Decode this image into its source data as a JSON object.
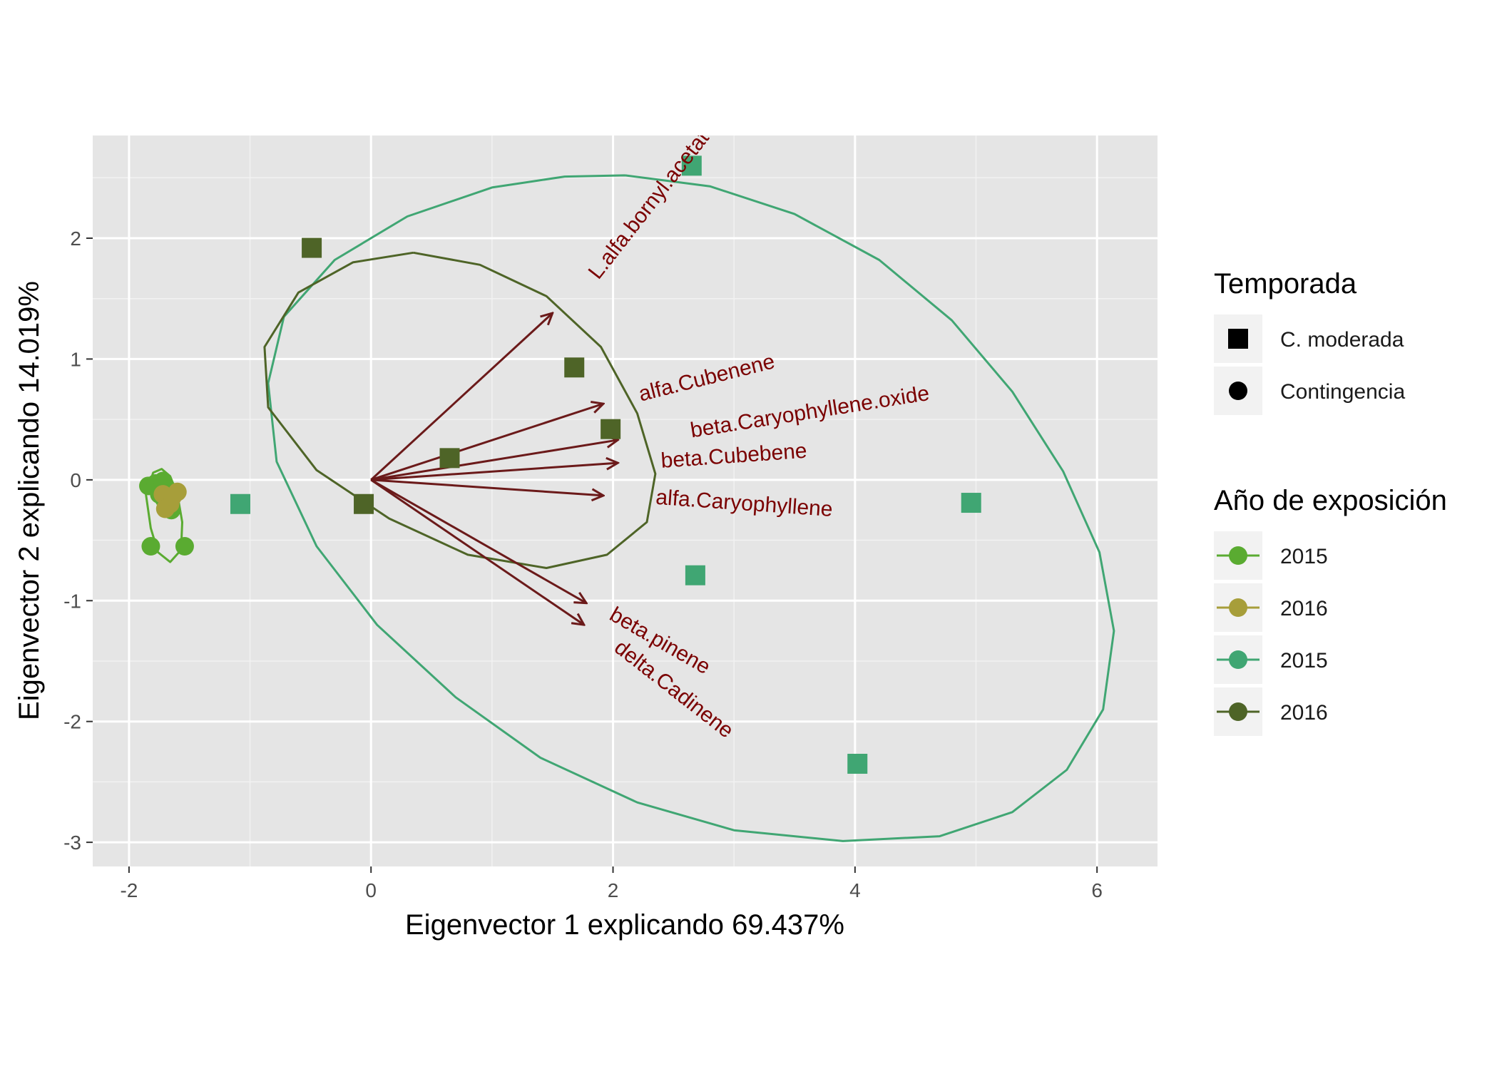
{
  "chart_data": {
    "type": "scatter",
    "subtype": "pca-biplot",
    "xlabel": "Eigenvector 1 explicando 69.437%",
    "ylabel": "Eigenvector 2 explicando 14.019%",
    "xlim": [
      -2.3,
      6.5
    ],
    "ylim": [
      -3.2,
      2.85
    ],
    "x_ticks": [
      -2,
      0,
      2,
      4,
      6
    ],
    "x_tick_labels": [
      "-2",
      "0",
      "2",
      "4",
      "6"
    ],
    "y_ticks": [
      -3,
      -2,
      -1,
      0,
      1,
      2
    ],
    "y_tick_labels": [
      "-3",
      "-2",
      "-1",
      "0",
      "1",
      "2"
    ],
    "grid": true,
    "panel_color": "#e5e5e5",
    "arrow_color": "#6b1a1a",
    "arrow_label_color": "#7a0000",
    "series": [
      {
        "name": "2015",
        "shape": "circle",
        "color": "#5aab31",
        "points": [
          [
            -1.84,
            -0.05
          ],
          [
            -1.78,
            -0.03
          ],
          [
            -1.72,
            -0.01
          ],
          [
            -1.68,
            -0.08
          ],
          [
            -1.75,
            -0.12
          ],
          [
            -1.66,
            -0.18
          ],
          [
            -1.71,
            -0.16
          ],
          [
            -1.65,
            -0.25
          ],
          [
            -1.82,
            -0.55
          ],
          [
            -1.54,
            -0.55
          ]
        ],
        "ellipse": [
          [
            -1.86,
            -0.12
          ],
          [
            -1.8,
            0.06
          ],
          [
            -1.73,
            0.09
          ],
          [
            -1.66,
            0.03
          ],
          [
            -1.6,
            -0.12
          ],
          [
            -1.56,
            -0.35
          ],
          [
            -1.57,
            -0.58
          ],
          [
            -1.66,
            -0.68
          ],
          [
            -1.76,
            -0.6
          ],
          [
            -1.82,
            -0.4
          ],
          [
            -1.86,
            -0.12
          ]
        ]
      },
      {
        "name": "2016",
        "shape": "circle",
        "color": "#a79e3a",
        "points": [
          [
            -1.72,
            -0.12
          ],
          [
            -1.6,
            -0.1
          ],
          [
            -1.66,
            -0.2
          ],
          [
            -1.7,
            -0.24
          ],
          [
            -1.64,
            -0.14
          ]
        ]
      },
      {
        "name": "2015",
        "shape": "square",
        "color": "#40a673",
        "points": [
          [
            2.65,
            2.6
          ],
          [
            -1.08,
            -0.2
          ],
          [
            2.68,
            -0.79
          ],
          [
            4.02,
            -2.35
          ],
          [
            4.96,
            -0.19
          ]
        ],
        "ellipse": [
          [
            2.1,
            2.52
          ],
          [
            2.8,
            2.43
          ],
          [
            3.5,
            2.2
          ],
          [
            4.2,
            1.82
          ],
          [
            4.8,
            1.32
          ],
          [
            5.3,
            0.73
          ],
          [
            5.72,
            0.07
          ],
          [
            6.02,
            -0.6
          ],
          [
            6.14,
            -1.25
          ],
          [
            6.05,
            -1.9
          ],
          [
            5.75,
            -2.4
          ],
          [
            5.3,
            -2.75
          ],
          [
            4.7,
            -2.95
          ],
          [
            3.9,
            -2.99
          ],
          [
            3.0,
            -2.9
          ],
          [
            2.2,
            -2.67
          ],
          [
            1.4,
            -2.3
          ],
          [
            0.7,
            -1.8
          ],
          [
            0.05,
            -1.2
          ],
          [
            -0.45,
            -0.55
          ],
          [
            -0.78,
            0.15
          ],
          [
            -0.85,
            0.8
          ],
          [
            -0.72,
            1.35
          ],
          [
            -0.3,
            1.82
          ],
          [
            0.3,
            2.18
          ],
          [
            1.0,
            2.42
          ],
          [
            1.6,
            2.51
          ],
          [
            2.1,
            2.52
          ]
        ]
      },
      {
        "name": "2016",
        "shape": "square",
        "color": "#4e6427",
        "points": [
          [
            -0.49,
            1.92
          ],
          [
            1.68,
            0.93
          ],
          [
            1.98,
            0.42
          ],
          [
            0.65,
            0.18
          ],
          [
            -0.06,
            -0.2
          ]
        ],
        "ellipse": [
          [
            0.35,
            1.88
          ],
          [
            0.9,
            1.78
          ],
          [
            1.45,
            1.52
          ],
          [
            1.9,
            1.1
          ],
          [
            2.2,
            0.55
          ],
          [
            2.35,
            0.05
          ],
          [
            2.28,
            -0.35
          ],
          [
            1.95,
            -0.62
          ],
          [
            1.45,
            -0.73
          ],
          [
            0.8,
            -0.62
          ],
          [
            0.15,
            -0.32
          ],
          [
            -0.45,
            0.08
          ],
          [
            -0.85,
            0.6
          ],
          [
            -0.88,
            1.1
          ],
          [
            -0.6,
            1.55
          ],
          [
            -0.15,
            1.8
          ],
          [
            0.35,
            1.88
          ]
        ]
      }
    ],
    "arrows": [
      {
        "label": "L.alfa.bornyl.acetate",
        "x": 1.5,
        "y": 1.38,
        "lx": 1.88,
        "ly": 1.65,
        "angle": -52
      },
      {
        "label": "alfa.Cubenene",
        "x": 1.92,
        "y": 0.63,
        "lx": 2.23,
        "ly": 0.65,
        "angle": -14
      },
      {
        "label": "beta.Caryophyllene.oxide",
        "x": 2.04,
        "y": 0.33,
        "lx": 2.65,
        "ly": 0.35,
        "angle": -9
      },
      {
        "label": "beta.Cubebene",
        "x": 2.04,
        "y": 0.14,
        "lx": 2.4,
        "ly": 0.1,
        "angle": -4
      },
      {
        "label": "alfa.Caryophyllene",
        "x": 1.92,
        "y": -0.13,
        "lx": 2.35,
        "ly": -0.2,
        "angle": 4
      },
      {
        "label": "beta.pinene",
        "x": 1.78,
        "y": -1.02,
        "lx": 1.96,
        "ly": -1.15,
        "angle": 30
      },
      {
        "label": "delta.Cadinene",
        "x": 1.76,
        "y": -1.2,
        "lx": 2.0,
        "ly": -1.41,
        "angle": 38
      }
    ]
  },
  "legend": {
    "shape_title": "Temporada",
    "shape_items": [
      {
        "label": "C. moderada",
        "shape": "square"
      },
      {
        "label": "Contingencia",
        "shape": "circle"
      }
    ],
    "color_title": "Año de exposición",
    "color_items": [
      {
        "label": "2015",
        "color": "#5aab31"
      },
      {
        "label": "2016",
        "color": "#a79e3a"
      },
      {
        "label": "2015",
        "color": "#40a673"
      },
      {
        "label": "2016",
        "color": "#4e6427"
      }
    ]
  }
}
